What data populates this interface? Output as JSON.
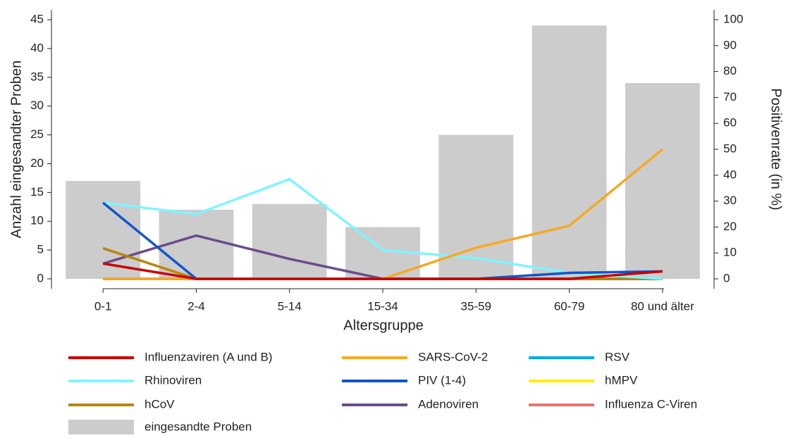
{
  "chart_data": {
    "type": "combo",
    "x_label": "Altersgruppe",
    "y_label": "Anzahl eingesandter Proben",
    "y2_label": "Positivenrate (in %)",
    "categories": [
      "0-1",
      "2-4",
      "5-14",
      "15-34",
      "35-59",
      "60-79",
      "80 und älter"
    ],
    "ylim": [
      0,
      45
    ],
    "yticks": [
      0,
      5,
      10,
      15,
      20,
      25,
      30,
      35,
      40,
      45
    ],
    "y2lim": [
      0,
      100
    ],
    "y2ticks": [
      0,
      10,
      20,
      30,
      40,
      50,
      60,
      70,
      80,
      90,
      100
    ],
    "series": [
      {
        "name": "eingesandte Proben",
        "type": "bar",
        "axis": "y",
        "color": "#cccccc",
        "values": [
          17,
          12,
          13,
          9,
          25,
          44,
          34
        ]
      },
      {
        "name": "Influenza C-Viren",
        "type": "line",
        "axis": "y2",
        "color": "#f07070",
        "values": [
          0,
          0,
          0,
          0,
          0,
          0,
          0
        ]
      },
      {
        "name": "hMPV",
        "type": "line",
        "axis": "y2",
        "color": "#ffee00",
        "values": [
          0,
          0,
          0,
          0,
          0,
          0,
          0
        ]
      },
      {
        "name": "RSV",
        "type": "line",
        "axis": "y2",
        "color": "#00aaee",
        "values": [
          0,
          0,
          0,
          0,
          0,
          0,
          0
        ]
      },
      {
        "name": "Adenoviren",
        "type": "line",
        "axis": "y2",
        "color": "#6b4c8a",
        "values": [
          5.9,
          16.7,
          7.7,
          0,
          0,
          0,
          0
        ]
      },
      {
        "name": "hCoV",
        "type": "line",
        "axis": "y2",
        "color": "#b8860b",
        "values": [
          11.8,
          0,
          0,
          0,
          0,
          0,
          0
        ]
      },
      {
        "name": "Rhinoviren",
        "type": "line",
        "axis": "y2",
        "color": "#80f4ff",
        "values": [
          29.4,
          25,
          38.5,
          11.1,
          8,
          2.3,
          0
        ]
      },
      {
        "name": "PIV (1-4)",
        "type": "line",
        "axis": "y2",
        "color": "#1155cc",
        "values": [
          29.4,
          0,
          0,
          0,
          0,
          2.3,
          2.9
        ]
      },
      {
        "name": "SARS-CoV-2",
        "type": "line",
        "axis": "y2",
        "color": "#f7a823",
        "values": [
          0,
          0,
          0,
          0,
          12,
          20.5,
          50
        ]
      },
      {
        "name": "Influenzaviren (A und B)",
        "type": "line",
        "axis": "y2",
        "color": "#cc0000",
        "values": [
          5.9,
          0,
          0,
          0,
          0,
          0,
          2.9
        ]
      }
    ],
    "legend_order": [
      9,
      8,
      3,
      6,
      7,
      2,
      5,
      4,
      1,
      0
    ]
  }
}
